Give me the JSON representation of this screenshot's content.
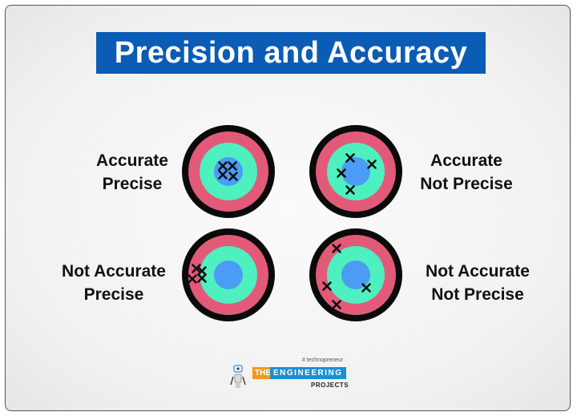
{
  "title": "Precision and Accuracy",
  "colors": {
    "banner": "#0b5cb4",
    "outer_ring": "#0a0a0a",
    "red_ring": "#e35a78",
    "green_ring": "#4ef0c0",
    "bullseye": "#4b9cf5",
    "mark": "#111111"
  },
  "panels": [
    {
      "line1": "Accurate",
      "line2": "Precise"
    },
    {
      "line1": "Accurate",
      "line2": "Not Precise"
    },
    {
      "line1": "Not Accurate",
      "line2": "Precise"
    },
    {
      "line1": "Not Accurate",
      "line2": "Not Precise"
    }
  ],
  "logo": {
    "tagline": "# technopreneur",
    "the": "THE",
    "engineering": "ENGINEERING",
    "projects": "PROJECTS"
  }
}
